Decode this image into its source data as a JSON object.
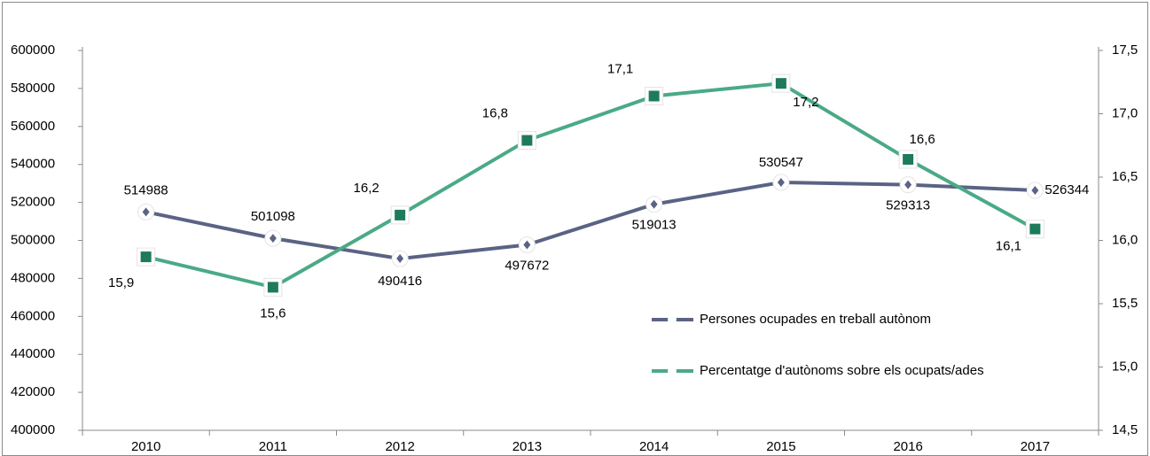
{
  "chart_data": {
    "type": "line",
    "categories": [
      "2010",
      "2011",
      "2012",
      "2013",
      "2014",
      "2015",
      "2016",
      "2017"
    ],
    "series": [
      {
        "name": "Persones ocupades en treball autònom",
        "color": "#5b6384",
        "marker": "diamond",
        "values": [
          514988,
          501098,
          490416,
          497672,
          519013,
          530547,
          529313,
          526344
        ]
      },
      {
        "name": "Percentatge d'autònoms sobre els ocupats/ades",
        "color": "#4aaa86",
        "marker": "square",
        "axis": "y2",
        "values": [
          15.87,
          15.63,
          16.2,
          16.79,
          17.14,
          17.24,
          16.64,
          16.09
        ],
        "value_labels": [
          "15,9",
          "15,6",
          "16,2",
          "16,8",
          "17,1",
          "17,2",
          "16,6",
          "16,1"
        ]
      }
    ],
    "ylim": [
      400000,
      600000
    ],
    "yticks": [
      400000,
      420000,
      440000,
      460000,
      480000,
      500000,
      520000,
      540000,
      560000,
      580000,
      600000
    ],
    "y2lim": [
      14.5,
      17.5
    ],
    "y2ticks": [
      {
        "value": 14.5,
        "label": "14,5"
      },
      {
        "value": 15,
        "label": "15,0"
      },
      {
        "value": 15.5,
        "label": "15,5"
      },
      {
        "value": 16,
        "label": "16,0"
      },
      {
        "value": 16.5,
        "label": "16,5"
      },
      {
        "value": 17,
        "label": "17,0"
      },
      {
        "value": 17.5,
        "label": "17,5"
      }
    ]
  }
}
